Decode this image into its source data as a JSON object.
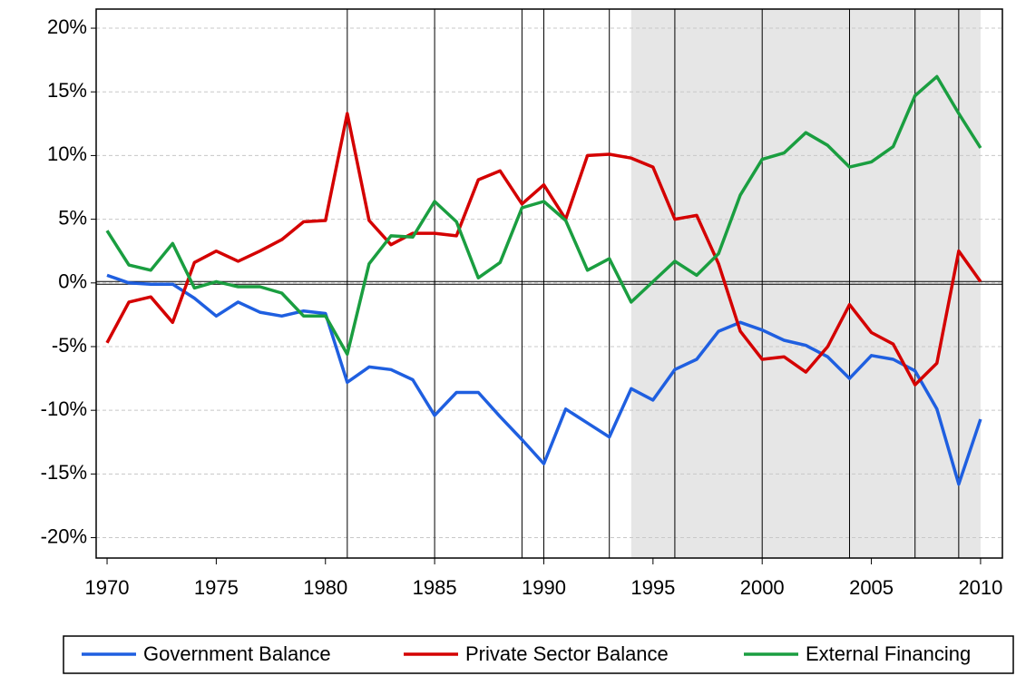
{
  "chart_data": {
    "type": "line",
    "x": [
      1970,
      1971,
      1972,
      1973,
      1974,
      1975,
      1976,
      1977,
      1978,
      1979,
      1980,
      1981,
      1982,
      1983,
      1984,
      1985,
      1986,
      1987,
      1988,
      1989,
      1990,
      1991,
      1992,
      1993,
      1994,
      1995,
      1996,
      1997,
      1998,
      1999,
      2000,
      2001,
      2002,
      2003,
      2004,
      2005,
      2006,
      2007,
      2008,
      2009,
      2010
    ],
    "series": [
      {
        "name": "Government Balance",
        "color": "#1f5fe0",
        "values": [
          0.6,
          0.0,
          -0.1,
          -0.1,
          -1.2,
          -2.6,
          -1.5,
          -2.3,
          -2.6,
          -2.2,
          -2.4,
          -7.8,
          -6.6,
          -6.8,
          -7.6,
          -10.4,
          -8.6,
          -8.6,
          -10.5,
          -12.3,
          -14.2,
          -9.9,
          -11.0,
          -12.1,
          -8.3,
          -9.2,
          -6.8,
          -6.0,
          -3.8,
          -3.1,
          -3.7,
          -4.5,
          -4.9,
          -5.8,
          -7.5,
          -5.7,
          -6.0,
          -6.9,
          -9.9,
          -15.8,
          -10.7
        ]
      },
      {
        "name": "Private Sector Balance",
        "color": "#d40000",
        "values": [
          -4.7,
          -1.5,
          -1.1,
          -3.1,
          1.6,
          2.5,
          1.7,
          2.5,
          3.4,
          4.8,
          4.9,
          13.3,
          4.9,
          3.0,
          3.9,
          3.9,
          3.7,
          8.1,
          8.8,
          6.2,
          7.7,
          5.0,
          10.0,
          10.1,
          9.8,
          9.1,
          5.0,
          5.3,
          1.5,
          -3.8,
          -6.0,
          -5.8,
          -7.0,
          -5.0,
          -1.7,
          -3.9,
          -4.8,
          -8.0,
          -6.3,
          2.5,
          0.1
        ]
      },
      {
        "name": "External Financing",
        "color": "#1a9e40",
        "values": [
          4.1,
          1.4,
          1.0,
          3.1,
          -0.4,
          0.1,
          -0.3,
          -0.3,
          -0.8,
          -2.6,
          -2.6,
          -5.6,
          1.5,
          3.7,
          3.6,
          6.4,
          4.8,
          0.4,
          1.6,
          5.9,
          6.4,
          4.9,
          1.0,
          1.9,
          -1.5,
          0.1,
          1.7,
          0.6,
          2.3,
          6.9,
          9.7,
          10.2,
          11.8,
          10.8,
          9.1,
          9.5,
          10.7,
          14.7,
          16.2,
          13.3,
          10.6
        ]
      }
    ],
    "xlim": [
      1969.5,
      2011
    ],
    "ylim": [
      -21.6,
      21.5
    ],
    "xticks": [
      1970,
      1975,
      1980,
      1985,
      1990,
      1995,
      2000,
      2005,
      2010
    ],
    "yticks": [
      {
        "value": -20,
        "label": "-20%"
      },
      {
        "value": -15,
        "label": "-15%"
      },
      {
        "value": -10,
        "label": "-10%"
      },
      {
        "value": -5,
        "label": "-5%"
      },
      {
        "value": 0,
        "label": "0%"
      },
      {
        "value": 5,
        "label": "5%"
      },
      {
        "value": 10,
        "label": "10%"
      },
      {
        "value": 15,
        "label": "15%"
      },
      {
        "value": 20,
        "label": "20%"
      }
    ],
    "grid": true,
    "shaded_region": [
      1994,
      2010
    ],
    "vlines": [
      1981,
      1985,
      1989,
      1990,
      1993,
      1996,
      2000,
      2004,
      2007,
      2009
    ],
    "legend": "bottom"
  }
}
